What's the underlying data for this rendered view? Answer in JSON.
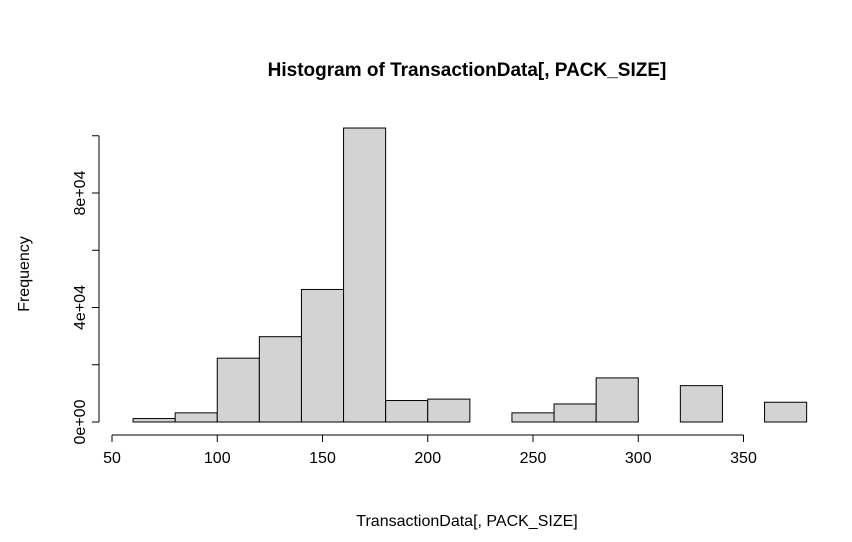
{
  "chart_data": {
    "type": "bar",
    "subtype": "histogram",
    "title": "Histogram of TransactionData[, PACK_SIZE]",
    "xlabel": "TransactionData[, PACK_SIZE]",
    "ylabel": "Frequency",
    "bin_width": 20,
    "bins": [
      {
        "start": 60,
        "end": 80,
        "count": 1200
      },
      {
        "start": 80,
        "end": 100,
        "count": 3200
      },
      {
        "start": 100,
        "end": 120,
        "count": 22300
      },
      {
        "start": 120,
        "end": 140,
        "count": 29800
      },
      {
        "start": 140,
        "end": 160,
        "count": 46300
      },
      {
        "start": 160,
        "end": 180,
        "count": 102700
      },
      {
        "start": 180,
        "end": 200,
        "count": 7500
      },
      {
        "start": 200,
        "end": 220,
        "count": 8000
      },
      {
        "start": 220,
        "end": 240,
        "count": 0
      },
      {
        "start": 240,
        "end": 260,
        "count": 3200
      },
      {
        "start": 260,
        "end": 280,
        "count": 6300
      },
      {
        "start": 280,
        "end": 300,
        "count": 15400
      },
      {
        "start": 300,
        "end": 320,
        "count": 0
      },
      {
        "start": 320,
        "end": 340,
        "count": 12700
      },
      {
        "start": 340,
        "end": 360,
        "count": 0
      },
      {
        "start": 360,
        "end": 380,
        "count": 6900
      }
    ],
    "xlim": [
      50,
      380
    ],
    "ylim": [
      0,
      100000
    ],
    "x_ticks": [
      50,
      100,
      150,
      200,
      250,
      300,
      350
    ],
    "x_tick_labels": [
      "50",
      "100",
      "150",
      "200",
      "250",
      "300",
      "350"
    ],
    "y_ticks": [
      0,
      20000,
      40000,
      60000,
      80000,
      100000
    ],
    "y_tick_labels": [
      "0e+00",
      "",
      "4e+04",
      "",
      "8e+04",
      ""
    ],
    "fill_color": "#d3d3d3",
    "edge_color": "#000000",
    "grid": false
  }
}
